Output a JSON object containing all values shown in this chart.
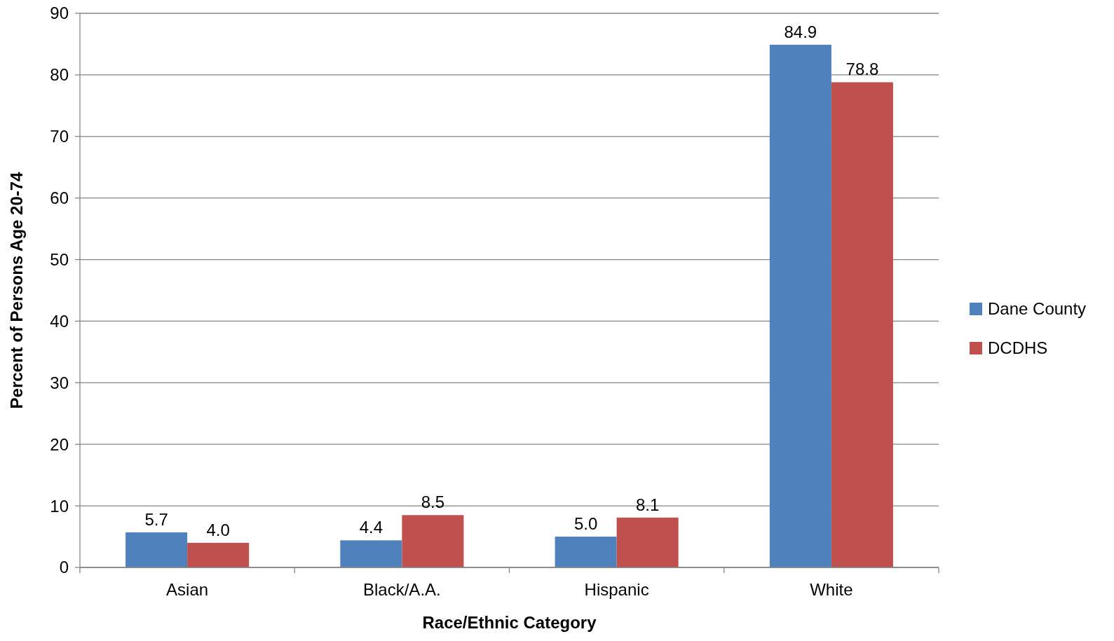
{
  "chart_data": {
    "type": "bar",
    "xlabel": "Race/Ethnic Category",
    "ylabel": "Percent of Persons Age 20-74",
    "categories": [
      "Asian",
      "Black/A.A.",
      "Hispanic",
      "White"
    ],
    "series": [
      {
        "name": "Dane County",
        "color": "#4f81bd",
        "values": [
          5.7,
          4.4,
          5.0,
          84.9
        ]
      },
      {
        "name": "DCDHS",
        "color": "#c0504d",
        "values": [
          4.0,
          8.5,
          8.1,
          78.8
        ]
      }
    ],
    "value_labels": [
      [
        "5.7",
        "4.4",
        "5.0",
        "84.9"
      ],
      [
        "4.0",
        "8.5",
        "8.1",
        "78.8"
      ]
    ],
    "ylim": [
      0,
      90
    ],
    "yticks": [
      0,
      10,
      20,
      30,
      40,
      50,
      60,
      70,
      80,
      90
    ],
    "grid": "y",
    "legend": "right"
  }
}
